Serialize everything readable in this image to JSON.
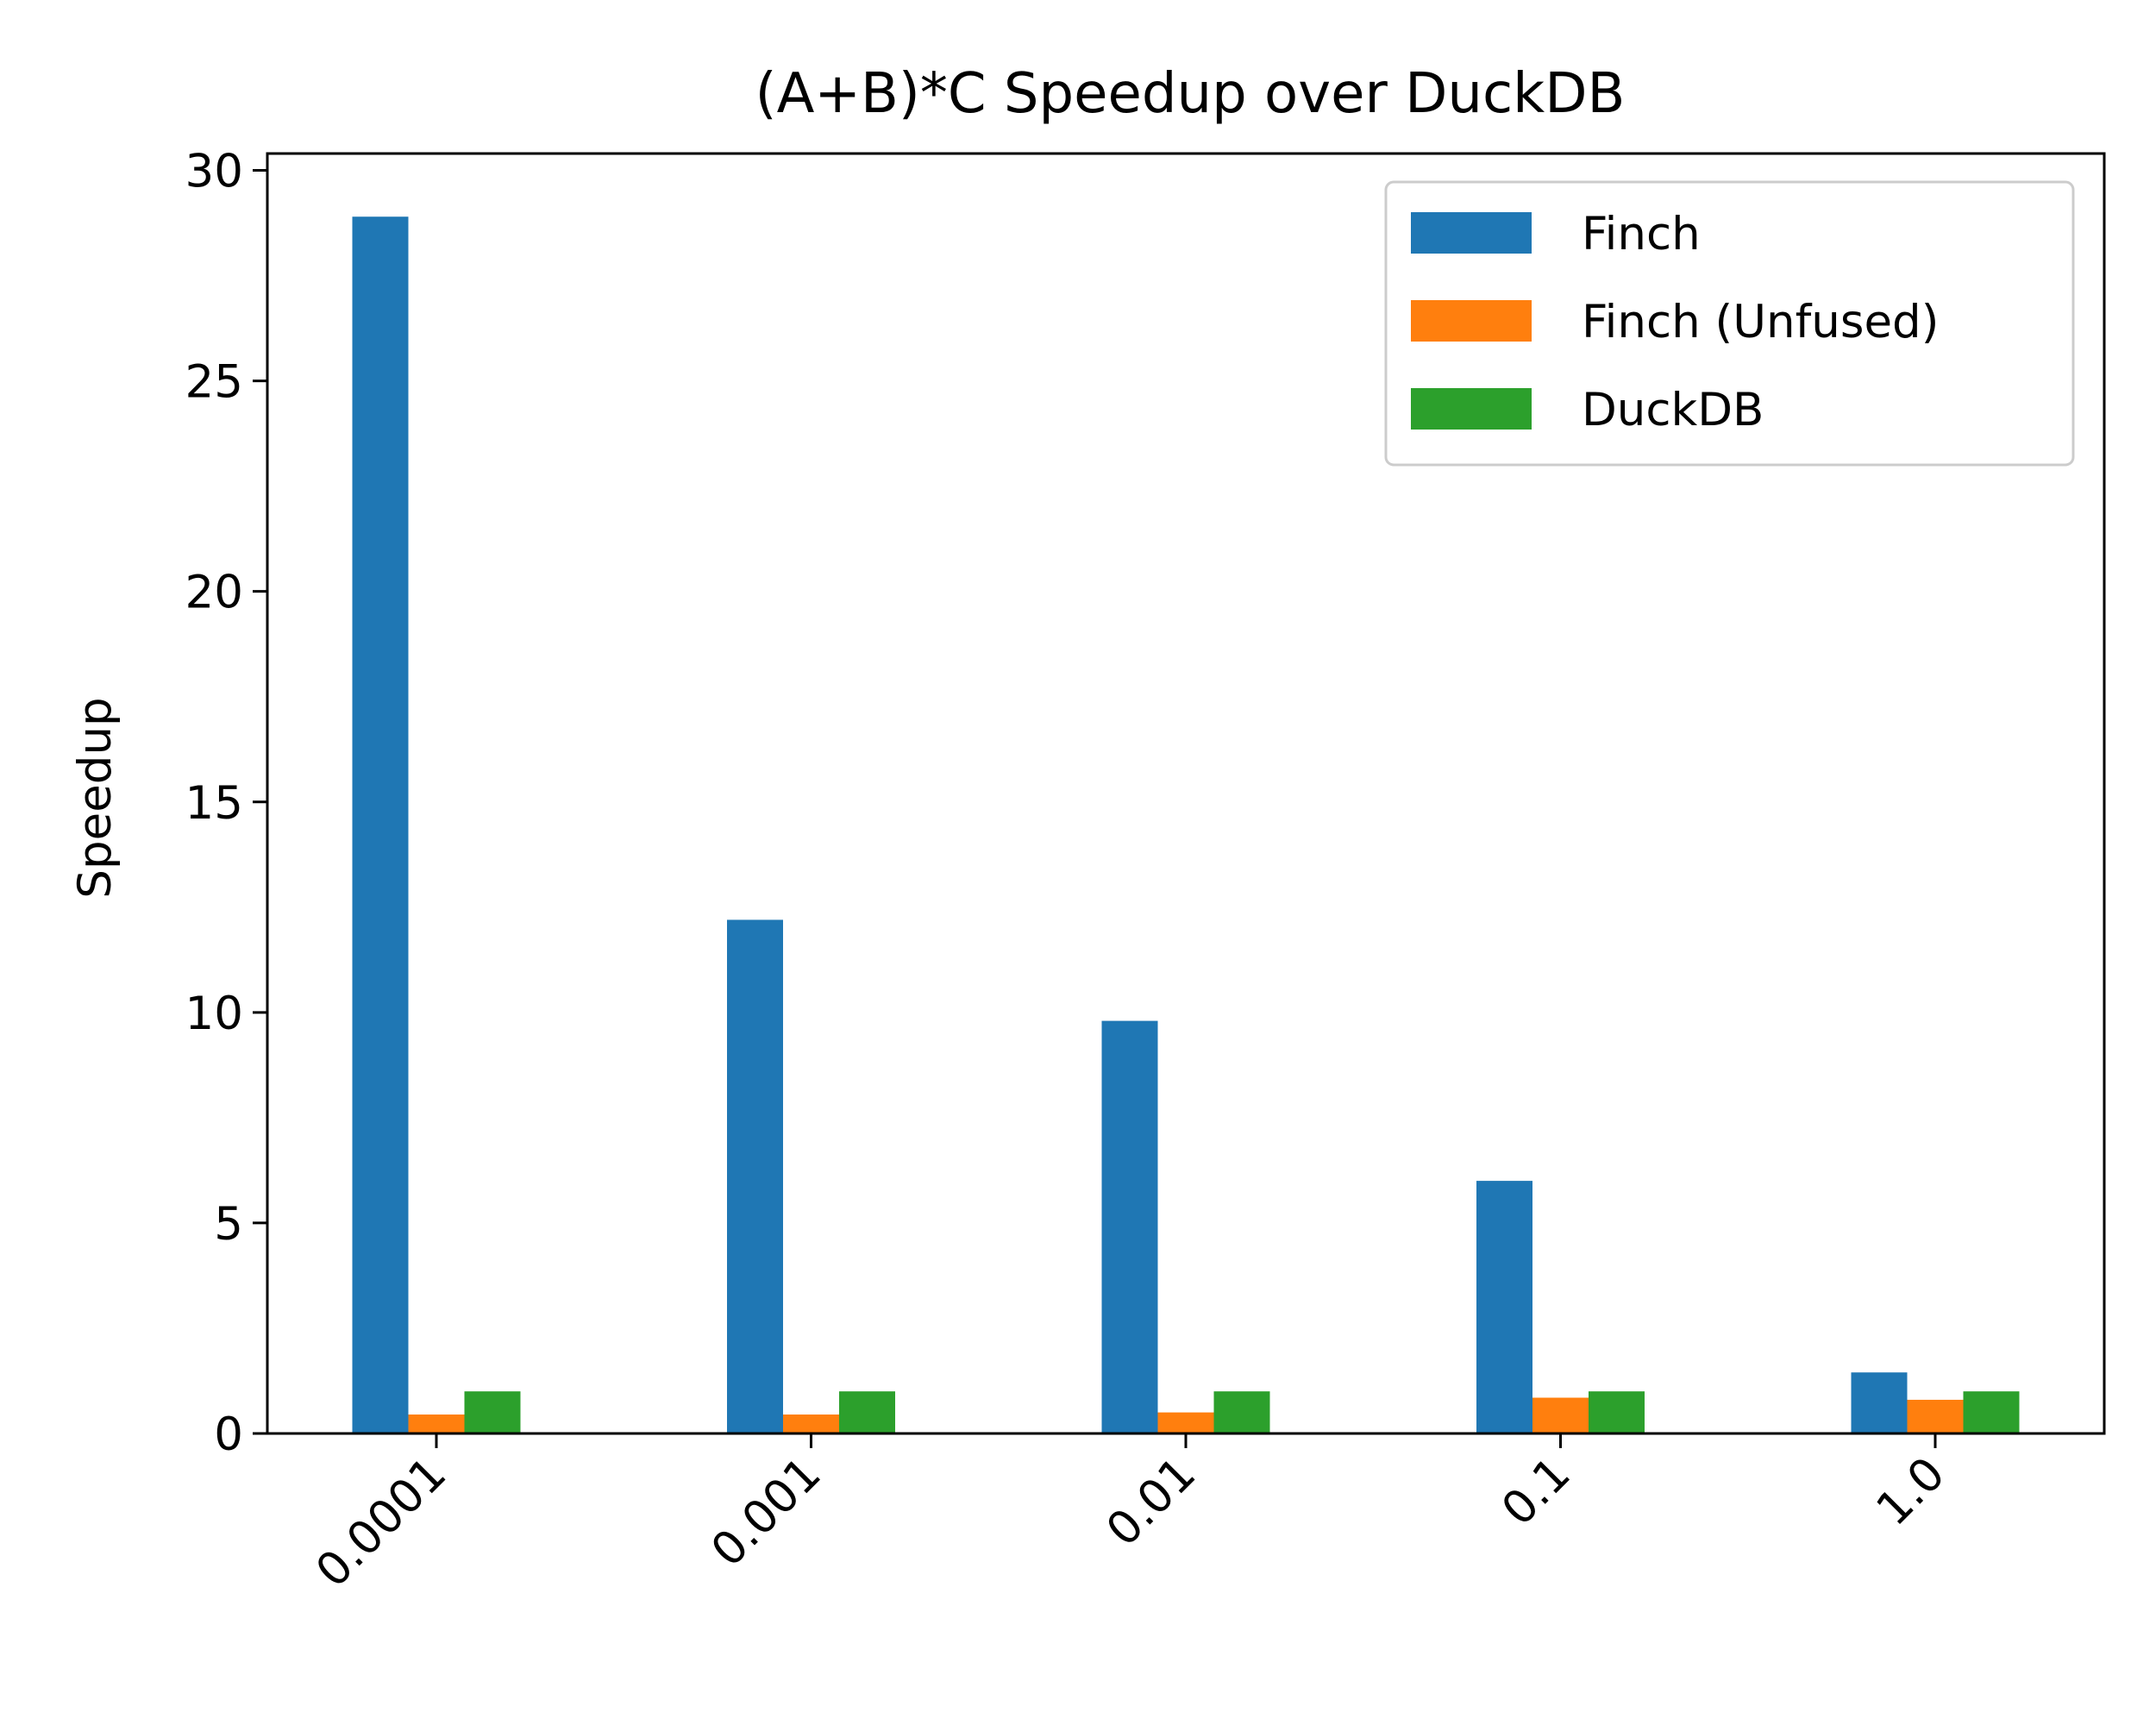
{
  "chart_data": {
    "type": "bar",
    "title": "(A+B)*C Speedup over DuckDB",
    "xlabel": "",
    "ylabel": "Speedup",
    "categories": [
      "0.0001",
      "0.001",
      "0.01",
      "0.1",
      "1.0"
    ],
    "series": [
      {
        "name": "Finch",
        "color": "#1f77b4",
        "values": [
          28.9,
          12.2,
          9.8,
          6.0,
          1.45
        ]
      },
      {
        "name": "Finch (Unfused)",
        "color": "#ff7f0e",
        "values": [
          0.45,
          0.45,
          0.5,
          0.85,
          0.8
        ]
      },
      {
        "name": "DuckDB",
        "color": "#2ca02c",
        "values": [
          1.0,
          1.0,
          1.0,
          1.0,
          1.0
        ]
      }
    ],
    "ylim": [
      0,
      30.4
    ],
    "yticks": [
      0,
      5,
      10,
      15,
      20,
      25,
      30
    ],
    "legend_position": "top-right",
    "grid": false
  }
}
